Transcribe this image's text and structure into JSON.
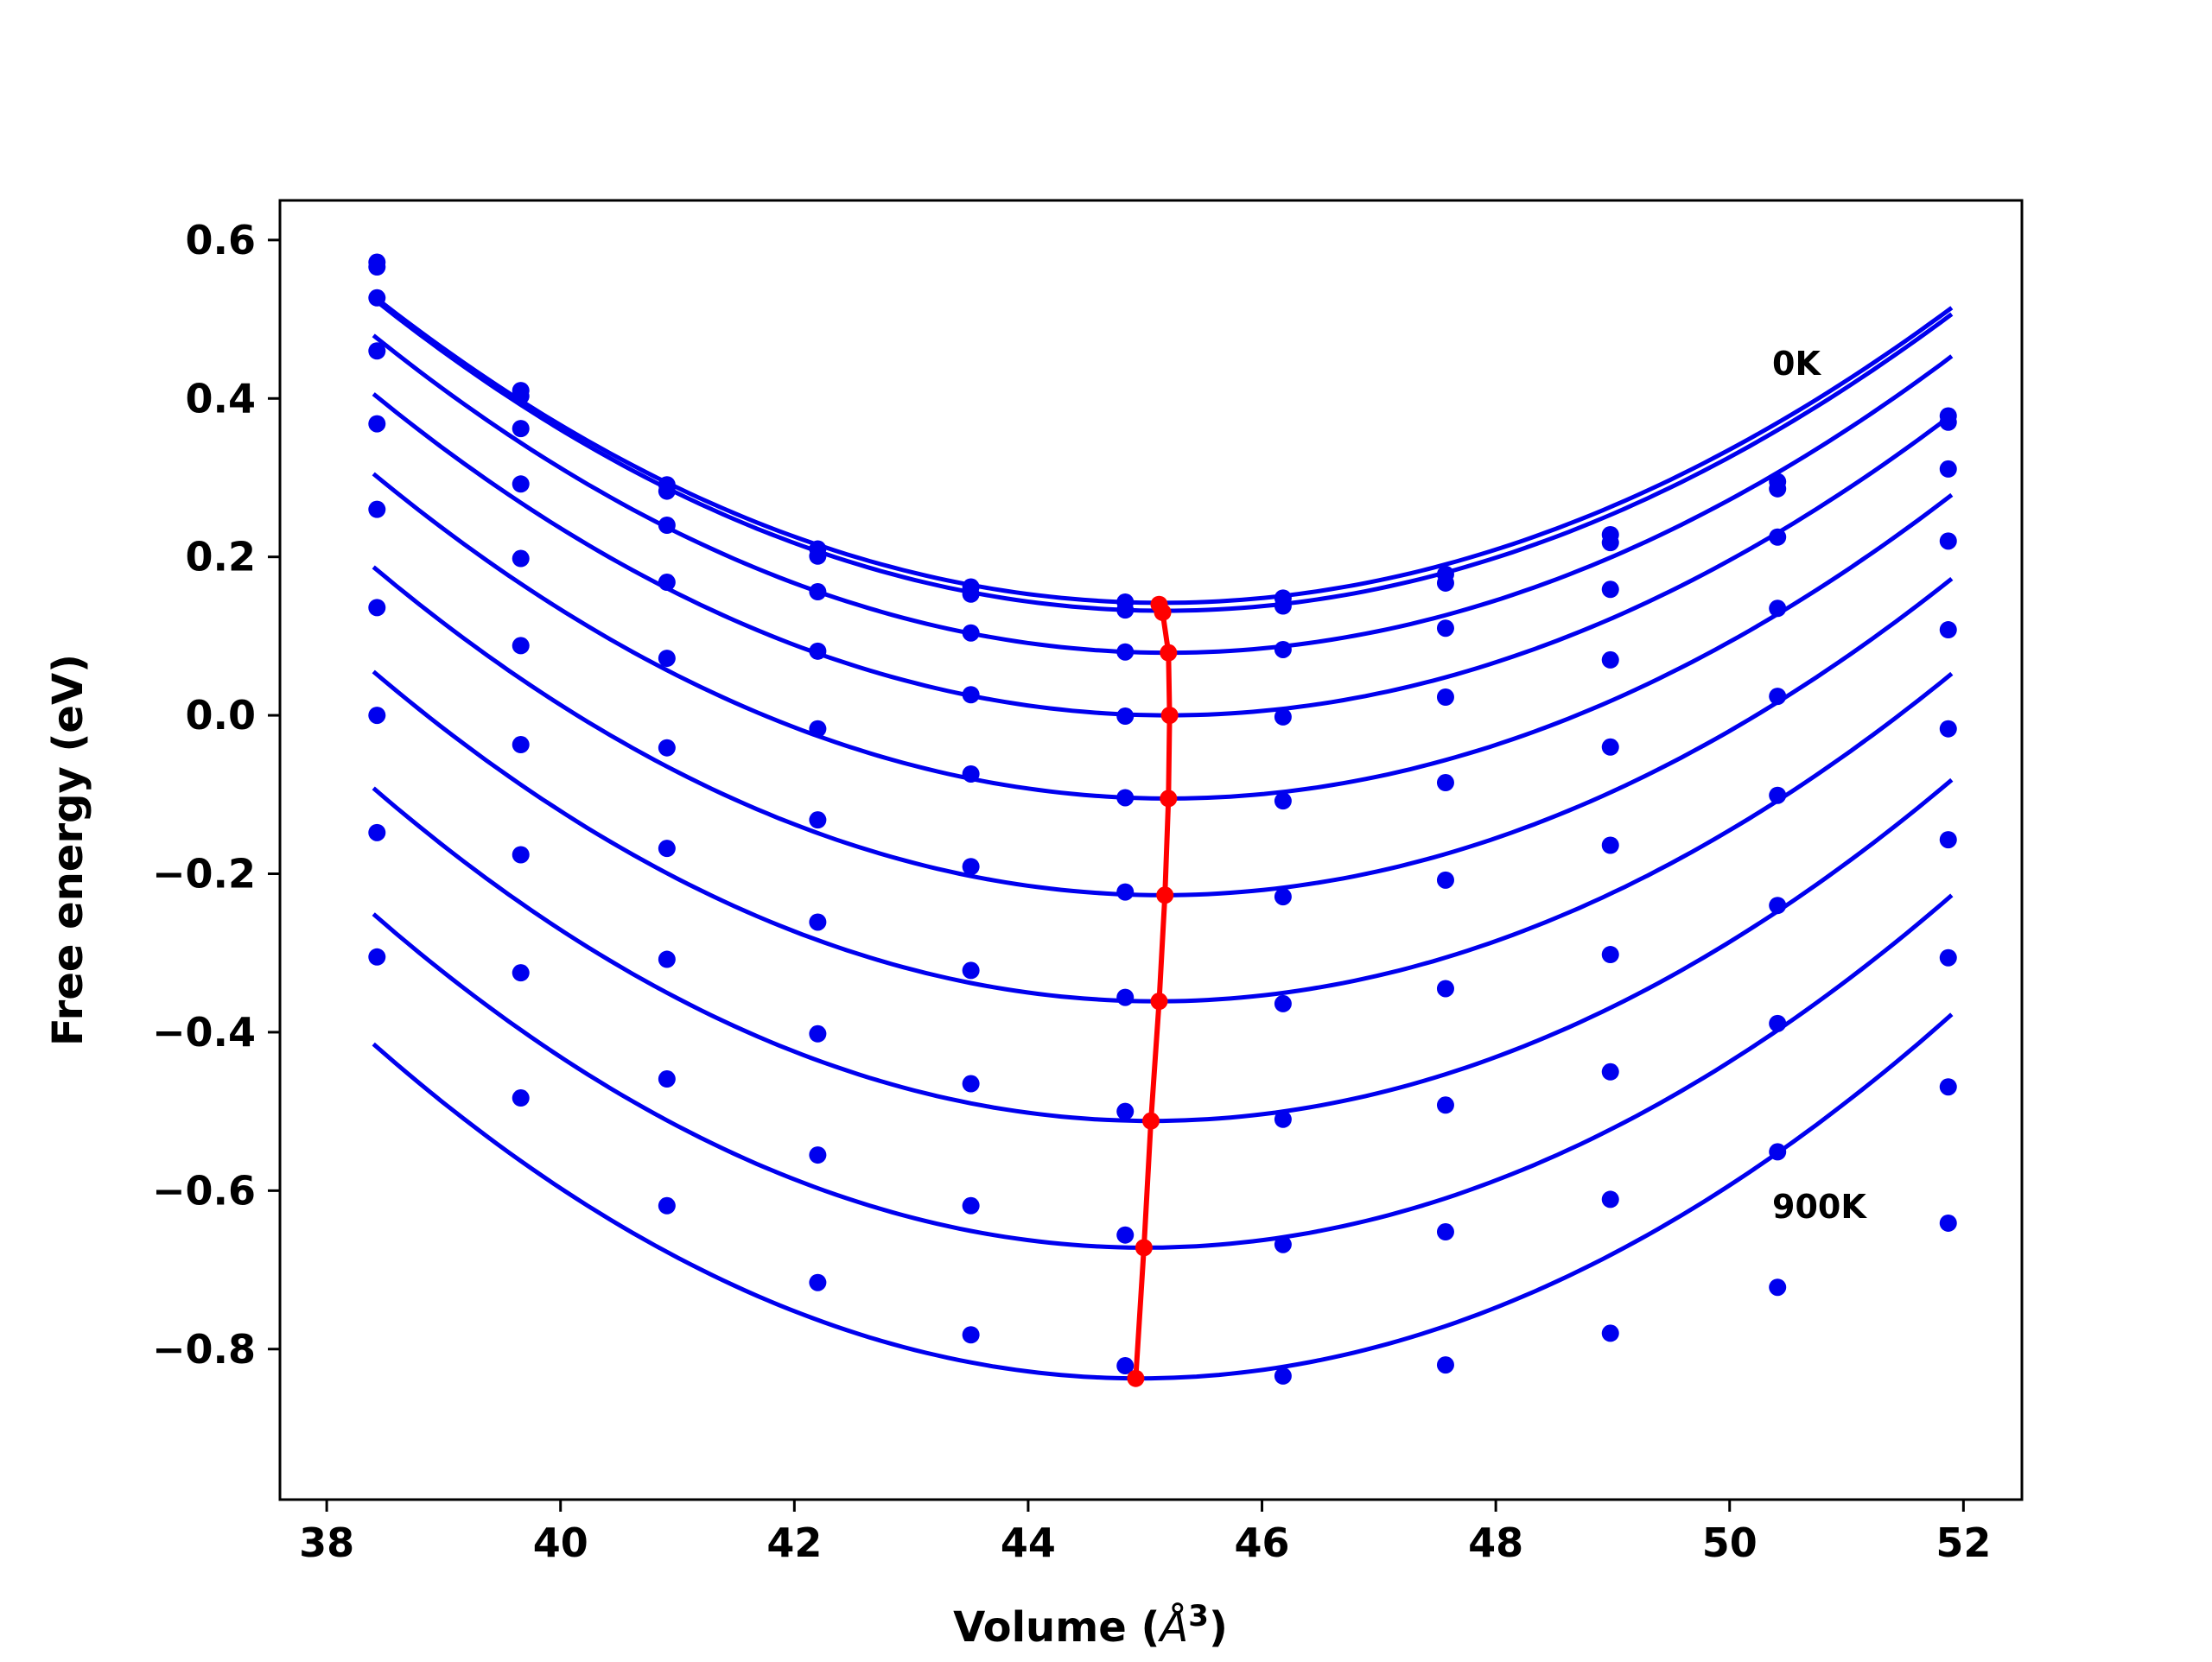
{
  "chart_data": {
    "type": "scatter",
    "xlabel": "Volume (",
    "xlabel_unit": "Å",
    "xlabel_exp": "3",
    "xlabel_close": ")",
    "ylabel": "Free energy (eV)",
    "xlim": [
      37.6,
      52.5
    ],
    "ylim": [
      -0.99,
      0.65
    ],
    "xticks": [
      38,
      40,
      42,
      44,
      46,
      48,
      50,
      52
    ],
    "yticks": [
      -0.8,
      -0.6,
      -0.4,
      -0.2,
      0.0,
      0.2,
      0.4,
      0.6
    ],
    "xtick_labels": [
      "38",
      "40",
      "42",
      "44",
      "46",
      "48",
      "50",
      "52"
    ],
    "ytick_labels": [
      "−0.8",
      "−0.6",
      "−0.4",
      "−0.2",
      "0.0",
      "0.2",
      "0.4",
      "0.6"
    ],
    "grid": false,
    "annotations": [
      {
        "text": "0K",
        "x": 50.4,
        "y": 0.435
      },
      {
        "text": "900K",
        "x": 50.4,
        "y": -0.63
      }
    ],
    "colors": {
      "curves": "#0000ee",
      "points": "#0000ee",
      "minima": "#ff0000"
    },
    "x": [
      38.43,
      39.66,
      40.91,
      42.2,
      43.51,
      44.83,
      46.18,
      47.57,
      48.98,
      50.41,
      51.87
    ],
    "series": [
      {
        "values": [
          0.572,
          0.41,
          0.291,
          0.21,
          0.162,
          0.143,
          0.148,
          0.178,
          0.228,
          0.295,
          0.378
        ],
        "fit": {
          "vmin": 45.15,
          "fmin": 0.142,
          "a": 0.00834,
          "b": 2.4e-05
        }
      },
      {
        "values": [
          0.566,
          0.403,
          0.283,
          0.201,
          0.153,
          0.133,
          0.138,
          0.167,
          0.218,
          0.286,
          0.37
        ],
        "fit": {
          "vmin": 45.17,
          "fmin": 0.132,
          "a": 0.00843,
          "b": 2.4e-05
        }
      },
      {
        "values": [
          0.527,
          0.362,
          0.24,
          0.156,
          0.104,
          0.08,
          0.083,
          0.11,
          0.159,
          0.225,
          0.311
        ],
        "fit": {
          "vmin": 45.2,
          "fmin": 0.079,
          "a": 0.0085,
          "b": 2.4e-05
        }
      },
      {
        "values": [
          0.46,
          0.292,
          0.168,
          0.081,
          0.026,
          -0.001,
          -0.002,
          0.023,
          0.07,
          0.135,
          0.22
        ],
        "fit": {
          "vmin": 45.2,
          "fmin": 0.0,
          "a": 0.00861,
          "b": 2.4e-05
        }
      },
      {
        "values": [
          0.368,
          0.198,
          0.072,
          -0.017,
          -0.074,
          -0.104,
          -0.108,
          -0.085,
          -0.04,
          0.024,
          0.108
        ],
        "fit": {
          "vmin": 45.2,
          "fmin": -0.105,
          "a": 0.0087,
          "b": 2.4e-05
        }
      },
      {
        "values": [
          0.26,
          0.088,
          -0.041,
          -0.132,
          -0.191,
          -0.223,
          -0.229,
          -0.208,
          -0.164,
          -0.101,
          -0.017
        ],
        "fit": {
          "vmin": 45.15,
          "fmin": -0.227,
          "a": 0.00893,
          "b": 2.4e-05
        }
      },
      {
        "values": [
          0.136,
          -0.037,
          -0.168,
          -0.261,
          -0.322,
          -0.356,
          -0.364,
          -0.345,
          -0.302,
          -0.24,
          -0.157
        ],
        "fit": {
          "vmin": 45.1,
          "fmin": -0.361,
          "a": 0.00911,
          "b": 2.4e-05
        }
      },
      {
        "values": [
          0.0,
          -0.176,
          -0.308,
          -0.402,
          -0.465,
          -0.5,
          -0.51,
          -0.492,
          -0.45,
          -0.389,
          -0.306
        ],
        "fit": {
          "vmin": 45.05,
          "fmin": -0.512,
          "a": 0.00934,
          "b": 2.4e-05
        }
      },
      {
        "values": [
          -0.148,
          -0.325,
          -0.459,
          -0.555,
          -0.619,
          -0.656,
          -0.668,
          -0.652,
          -0.611,
          -0.551,
          -0.469
        ],
        "fit": {
          "vmin": 45.0,
          "fmin": -0.672,
          "a": 0.00951,
          "b": 2.4e-05
        }
      },
      {
        "values": [
          -0.305,
          -0.483,
          -0.619,
          -0.716,
          -0.782,
          -0.821,
          -0.834,
          -0.82,
          -0.78,
          -0.722,
          -0.641
        ],
        "fit": {
          "vmin": 44.95,
          "fmin": -0.837,
          "a": 0.00968,
          "b": 2.4e-05
        }
      }
    ],
    "minima_curve": {
      "x": [
        45.12,
        45.15,
        45.2,
        45.21,
        45.2,
        45.17,
        45.12,
        45.05,
        44.99,
        44.92
      ],
      "y": [
        0.14,
        0.13,
        0.079,
        0.0,
        -0.105,
        -0.227,
        -0.361,
        -0.512,
        -0.672,
        -0.837
      ]
    }
  }
}
